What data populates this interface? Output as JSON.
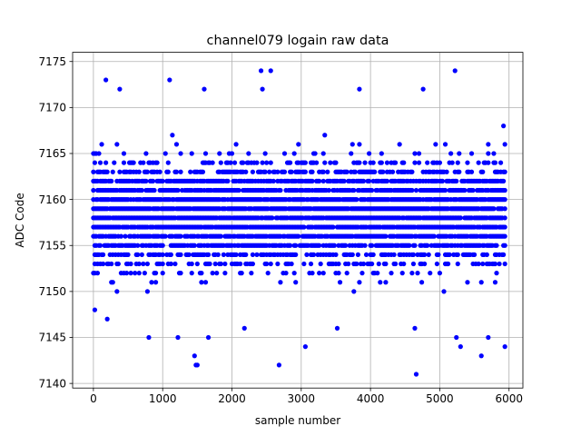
{
  "chart_data": {
    "type": "scatter",
    "title": "channel079 logain raw data",
    "xlabel": "sample number",
    "ylabel": "ADC Code",
    "xlim": [
      -300,
      6200
    ],
    "ylim": [
      7139.5,
      7176
    ],
    "xticks": [
      0,
      1000,
      2000,
      3000,
      4000,
      5000,
      6000
    ],
    "yticks": [
      7140,
      7145,
      7150,
      7155,
      7160,
      7165,
      7170,
      7175
    ],
    "grid": true,
    "marker_color": "#0000ff",
    "sampling": {
      "x_start": 0,
      "x_end": 5940,
      "x_step": 20,
      "value_min": 7141,
      "value_max": 7174,
      "core_range": [
        7147,
        7170
      ]
    },
    "outliers": [
      {
        "x": 20,
        "y": 7148
      },
      {
        "x": 180,
        "y": 7173
      },
      {
        "x": 200,
        "y": 7147
      },
      {
        "x": 380,
        "y": 7172
      },
      {
        "x": 800,
        "y": 7145
      },
      {
        "x": 1100,
        "y": 7173
      },
      {
        "x": 1220,
        "y": 7145
      },
      {
        "x": 1460,
        "y": 7143
      },
      {
        "x": 1480,
        "y": 7142
      },
      {
        "x": 1500,
        "y": 7142
      },
      {
        "x": 1600,
        "y": 7172
      },
      {
        "x": 1660,
        "y": 7145
      },
      {
        "x": 2180,
        "y": 7146
      },
      {
        "x": 2420,
        "y": 7174
      },
      {
        "x": 2440,
        "y": 7172
      },
      {
        "x": 2560,
        "y": 7174
      },
      {
        "x": 2680,
        "y": 7142
      },
      {
        "x": 3060,
        "y": 7144
      },
      {
        "x": 3520,
        "y": 7146
      },
      {
        "x": 3840,
        "y": 7172
      },
      {
        "x": 4640,
        "y": 7146
      },
      {
        "x": 4660,
        "y": 7141
      },
      {
        "x": 4760,
        "y": 7172
      },
      {
        "x": 5220,
        "y": 7174
      },
      {
        "x": 5240,
        "y": 7145
      },
      {
        "x": 5300,
        "y": 7144
      },
      {
        "x": 5600,
        "y": 7143
      },
      {
        "x": 5700,
        "y": 7145
      },
      {
        "x": 5940,
        "y": 7144
      }
    ]
  }
}
